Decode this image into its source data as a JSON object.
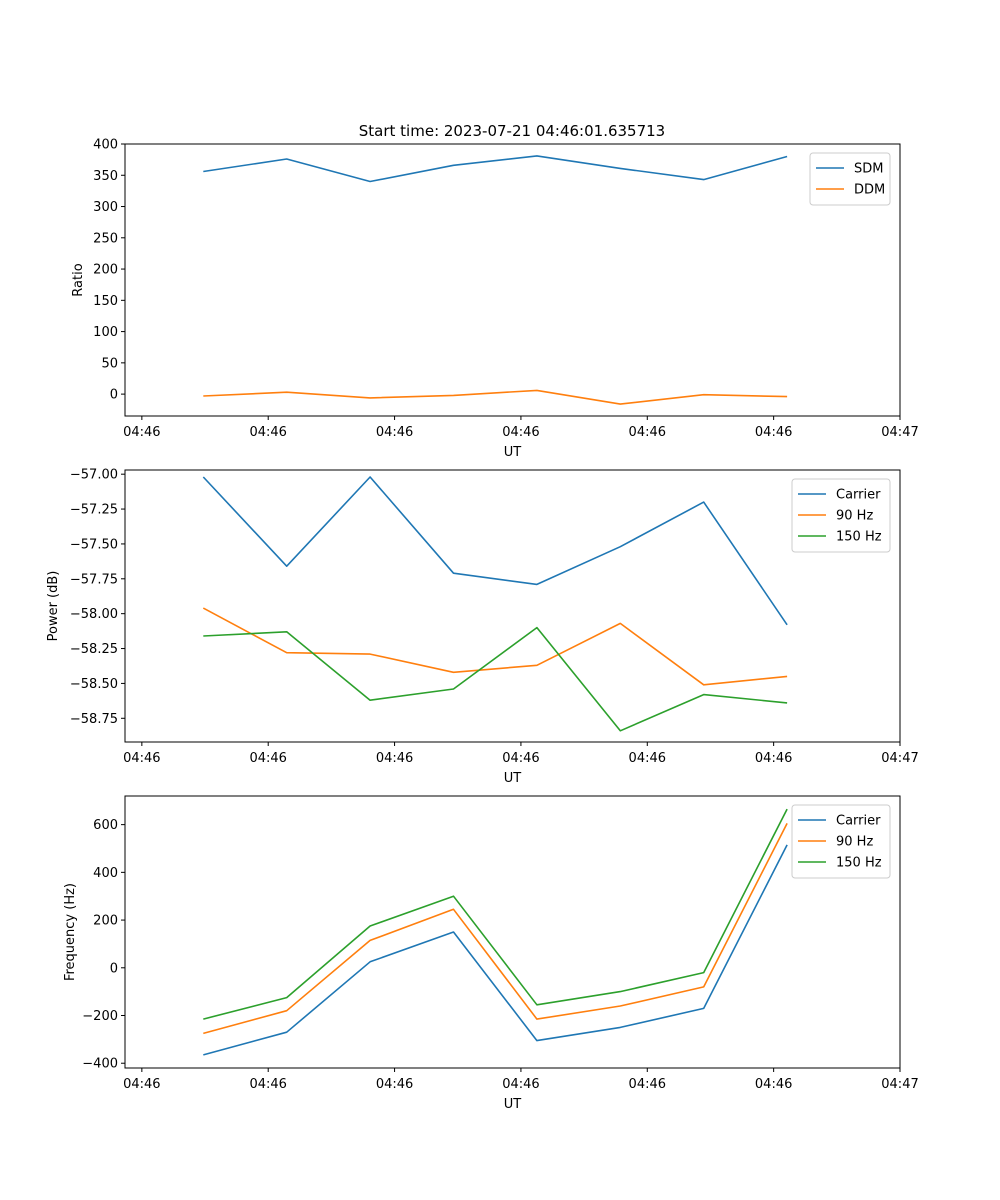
{
  "figure_title": "Start time: 2023-07-21 04:46:01.635713",
  "chart_data": [
    {
      "type": "line",
      "title": "Start time: 2023-07-21 04:46:01.635713",
      "xlabel": "UT",
      "ylabel": "Ratio",
      "xlim": [
        0,
        9.2
      ],
      "ylim": [
        -35,
        400
      ],
      "xticks": [
        0.2,
        1.7,
        3.2,
        4.7,
        6.2,
        7.7,
        9.2
      ],
      "xtick_labels": [
        "04:46",
        "04:46",
        "04:46",
        "04:46",
        "04:46",
        "04:46",
        "04:47"
      ],
      "yticks": [
        0,
        50,
        100,
        150,
        200,
        250,
        300,
        350,
        400
      ],
      "ytick_labels": [
        "0",
        "50",
        "100",
        "150",
        "200",
        "250",
        "300",
        "350",
        "400"
      ],
      "x": [
        0.93,
        1.92,
        2.91,
        3.9,
        4.89,
        5.88,
        6.87,
        7.86
      ],
      "legend": "upper right",
      "series": [
        {
          "name": "SDM",
          "color": "#1f77b4",
          "values": [
            356,
            376,
            340,
            366,
            381,
            361,
            343,
            380
          ]
        },
        {
          "name": "DDM",
          "color": "#ff7f0e",
          "values": [
            -3,
            3,
            -6,
            -2,
            6,
            -16,
            -1,
            -4
          ]
        }
      ]
    },
    {
      "type": "line",
      "title": "",
      "xlabel": "UT",
      "ylabel": "Power (dB)",
      "xlim": [
        0,
        9.2
      ],
      "ylim": [
        -58.92,
        -56.97
      ],
      "xticks": [
        0.2,
        1.7,
        3.2,
        4.7,
        6.2,
        7.7,
        9.2
      ],
      "xtick_labels": [
        "04:46",
        "04:46",
        "04:46",
        "04:46",
        "04:46",
        "04:46",
        "04:47"
      ],
      "yticks": [
        -58.75,
        -58.5,
        -58.25,
        -58.0,
        -57.75,
        -57.5,
        -57.25,
        -57.0
      ],
      "ytick_labels": [
        "−58.75",
        "−58.50",
        "−58.25",
        "−58.00",
        "−57.75",
        "−57.50",
        "−57.25",
        "−57.00"
      ],
      "x": [
        0.93,
        1.92,
        2.91,
        3.9,
        4.89,
        5.88,
        6.87,
        7.86
      ],
      "legend": "upper right",
      "series": [
        {
          "name": "Carrier",
          "color": "#1f77b4",
          "values": [
            -57.02,
            -57.66,
            -57.02,
            -57.71,
            -57.79,
            -57.52,
            -57.2,
            -58.08
          ]
        },
        {
          "name": "90 Hz",
          "color": "#ff7f0e",
          "values": [
            -57.96,
            -58.28,
            -58.29,
            -58.42,
            -58.37,
            -58.07,
            -58.51,
            -58.45
          ]
        },
        {
          "name": "150 Hz",
          "color": "#2ca02c",
          "values": [
            -58.16,
            -58.13,
            -58.62,
            -58.54,
            -58.1,
            -58.84,
            -58.58,
            -58.64
          ]
        }
      ]
    },
    {
      "type": "line",
      "title": "",
      "xlabel": "UT",
      "ylabel": "Frequency (Hz)",
      "xlim": [
        0,
        9.2
      ],
      "ylim": [
        -420,
        720
      ],
      "xticks": [
        0.2,
        1.7,
        3.2,
        4.7,
        6.2,
        7.7,
        9.2
      ],
      "xtick_labels": [
        "04:46",
        "04:46",
        "04:46",
        "04:46",
        "04:46",
        "04:46",
        "04:47"
      ],
      "yticks": [
        -400,
        -200,
        0,
        200,
        400,
        600
      ],
      "ytick_labels": [
        "−400",
        "−200",
        "0",
        "200",
        "400",
        "600"
      ],
      "x": [
        0.93,
        1.92,
        2.91,
        3.9,
        4.89,
        5.88,
        6.87,
        7.86
      ],
      "legend": "upper right",
      "series": [
        {
          "name": "Carrier",
          "color": "#1f77b4",
          "values": [
            -365,
            -270,
            25,
            150,
            -305,
            -250,
            -170,
            515
          ]
        },
        {
          "name": "90 Hz",
          "color": "#ff7f0e",
          "values": [
            -275,
            -180,
            115,
            245,
            -215,
            -160,
            -80,
            605
          ]
        },
        {
          "name": "150 Hz",
          "color": "#2ca02c",
          "values": [
            -215,
            -125,
            175,
            300,
            -155,
            -100,
            -20,
            665
          ]
        }
      ]
    }
  ]
}
